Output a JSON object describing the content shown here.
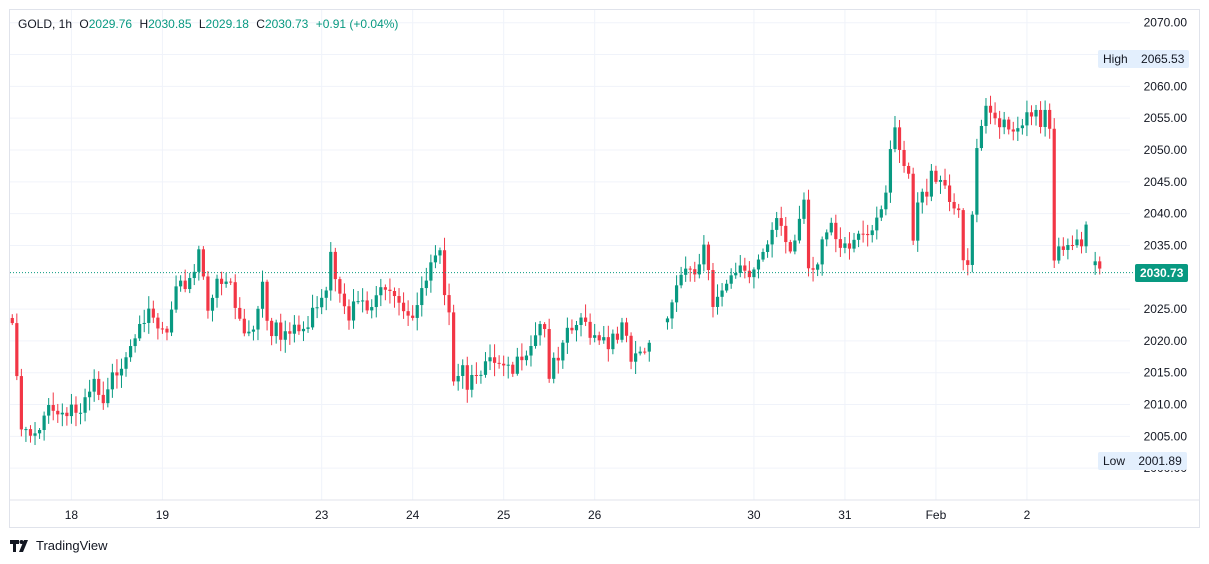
{
  "legend": {
    "symbol": "GOLD, 1h",
    "open_key": "O",
    "open": "2029.76",
    "high_key": "H",
    "high": "2030.85",
    "low_key": "L",
    "low": "2029.18",
    "close_key": "C",
    "close": "2030.73",
    "change": "+0.91 (+0.04%)"
  },
  "brand": "TradingView",
  "colors": {
    "up": "#089981",
    "down": "#f23645",
    "grid": "#f0f3fa",
    "axis_text": "#131722"
  },
  "chart_data": {
    "type": "candlestick",
    "title": "GOLD, 1h",
    "ylim": [
      1995,
      2072
    ],
    "yticks": [
      2000,
      2005,
      2010,
      2015,
      2020,
      2025,
      2030,
      2035,
      2040,
      2045,
      2050,
      2055,
      2060,
      2065,
      2070
    ],
    "ytick_labels": [
      "2000.00",
      "2005.00",
      "2010.00",
      "2015.00",
      "2020.00",
      "2025.00",
      "2030.00",
      "2035.00",
      "2040.00",
      "2045.00",
      "2050.00",
      "2055.00",
      "2060.00",
      "2065.00",
      "2070.00"
    ],
    "xticks": [
      {
        "label": "18",
        "bar": 13
      },
      {
        "label": "19",
        "bar": 33
      },
      {
        "label": "23",
        "bar": 68
      },
      {
        "label": "24",
        "bar": 88
      },
      {
        "label": "25",
        "bar": 108
      },
      {
        "label": "26",
        "bar": 128
      },
      {
        "label": "30",
        "bar": 163
      },
      {
        "label": "31",
        "bar": 183
      },
      {
        "label": "Feb",
        "bar": 203
      },
      {
        "label": "2",
        "bar": 223
      }
    ],
    "high_label": "High",
    "high_value": "2065.53",
    "low_label": "Low",
    "low_value": "2001.89",
    "last_value": "2030.73",
    "last_numeric": 2030.73,
    "total_bars": 240,
    "keypoints": [
      [
        0,
        2022.8
      ],
      [
        1,
        2013.0
      ],
      [
        2,
        2006.0
      ],
      [
        4,
        2004.5
      ],
      [
        6,
        2005.0
      ],
      [
        8,
        2011.0
      ],
      [
        10,
        2008.5
      ],
      [
        13,
        2010.0
      ],
      [
        15,
        2008.0
      ],
      [
        18,
        2013.0
      ],
      [
        20,
        2009.0
      ],
      [
        22,
        2014.0
      ],
      [
        24,
        2017.0
      ],
      [
        26,
        2020.0
      ],
      [
        28,
        2024.0
      ],
      [
        30,
        2023.5
      ],
      [
        32,
        2021.5
      ],
      [
        34,
        2021.0
      ],
      [
        36,
        2027.0
      ],
      [
        38,
        2029.0
      ],
      [
        40,
        2031.5
      ],
      [
        41,
        2034.5
      ],
      [
        42,
        2031.0
      ],
      [
        43,
        2026.0
      ],
      [
        45,
        2028.5
      ],
      [
        47,
        2028.5
      ],
      [
        48,
        2029.0
      ],
      [
        49,
        2025.0
      ],
      [
        51,
        2021.0
      ],
      [
        53,
        2022.5
      ],
      [
        55,
        2029.5
      ],
      [
        56,
        2024.0
      ],
      [
        57,
        2022.0
      ],
      [
        58,
        2024.0
      ],
      [
        59,
        2021.5
      ],
      [
        61,
        2021.0
      ],
      [
        63,
        2021.5
      ],
      [
        65,
        2022.0
      ],
      [
        67,
        2026.5
      ],
      [
        69,
        2029.0
      ],
      [
        70,
        2035.0
      ],
      [
        71,
        2030.5
      ],
      [
        73,
        2027.0
      ],
      [
        74,
        2024.5
      ],
      [
        76,
        2026.0
      ],
      [
        78,
        2024.5
      ],
      [
        80,
        2026.0
      ],
      [
        82,
        2029.5
      ],
      [
        84,
        2028.5
      ],
      [
        86,
        2025.5
      ],
      [
        88,
        2024.5
      ],
      [
        90,
        2027.0
      ],
      [
        92,
        2031.5
      ],
      [
        94,
        2033.0
      ],
      [
        95,
        2026.0
      ],
      [
        96,
        2023.0
      ],
      [
        97,
        2015.0
      ],
      [
        99,
        2017.0
      ],
      [
        100,
        2013.5
      ],
      [
        102,
        2016.0
      ],
      [
        104,
        2016.0
      ],
      [
        106,
        2016.0
      ],
      [
        108,
        2015.0
      ],
      [
        110,
        2014.5
      ],
      [
        112,
        2018.5
      ],
      [
        114,
        2020.0
      ],
      [
        116,
        2023.5
      ],
      [
        117,
        2022.0
      ],
      [
        118,
        2015.0
      ],
      [
        120,
        2016.5
      ],
      [
        122,
        2020.5
      ],
      [
        124,
        2022.5
      ],
      [
        126,
        2022.5
      ],
      [
        128,
        2021.0
      ],
      [
        130,
        2021.5
      ],
      [
        131,
        2019.0
      ],
      [
        132,
        2021.5
      ],
      [
        134,
        2022.0
      ],
      [
        135,
        2019.5
      ],
      [
        136,
        2016.5
      ],
      [
        138,
        2017.0
      ],
      [
        140,
        2019.0
      ],
      [
        141,
        null
      ],
      [
        142,
        null
      ],
      [
        143,
        null
      ],
      [
        144,
        2025.0
      ],
      [
        145,
        2026.5
      ],
      [
        146,
        2029.0
      ],
      [
        148,
        2032.0
      ],
      [
        150,
        2029.0
      ],
      [
        152,
        2035.0
      ],
      [
        153,
        2030.0
      ],
      [
        154,
        2024.5
      ],
      [
        155,
        2025.5
      ],
      [
        156,
        2028.0
      ],
      [
        158,
        2031.5
      ],
      [
        160,
        2032.0
      ],
      [
        162,
        2031.5
      ],
      [
        164,
        2032.5
      ],
      [
        166,
        2034.0
      ],
      [
        168,
        2038.5
      ],
      [
        170,
        2035.5
      ],
      [
        171,
        2034.5
      ],
      [
        172,
        2036.0
      ],
      [
        174,
        2043.0
      ],
      [
        175,
        2032.0
      ],
      [
        177,
        2033.0
      ],
      [
        178,
        2036.0
      ],
      [
        180,
        2037.0
      ],
      [
        182,
        2033.5
      ],
      [
        184,
        2034.5
      ],
      [
        186,
        2037.0
      ],
      [
        188,
        2037.5
      ],
      [
        190,
        2040.0
      ],
      [
        192,
        2044.0
      ],
      [
        193,
        2050.0
      ],
      [
        194,
        2052.0
      ],
      [
        195,
        2049.0
      ],
      [
        197,
        2045.0
      ],
      [
        198,
        2035.5
      ],
      [
        199,
        2041.0
      ],
      [
        201,
        2044.0
      ],
      [
        202,
        2047.5
      ],
      [
        203,
        2046.0
      ],
      [
        205,
        2045.0
      ],
      [
        207,
        2041.0
      ],
      [
        208,
        2039.0
      ],
      [
        209,
        2032.0
      ],
      [
        210,
        2031.5
      ],
      [
        211,
        2039.5
      ],
      [
        212,
        2049.0
      ],
      [
        214,
        2056.0
      ],
      [
        216,
        2055.0
      ],
      [
        218,
        2055.0
      ],
      [
        220,
        2053.5
      ],
      [
        222,
        2055.0
      ],
      [
        224,
        2054.5
      ],
      [
        225,
        2055.5
      ],
      [
        226,
        2053.5
      ],
      [
        227,
        2055.5
      ],
      [
        228,
        2052.0
      ],
      [
        229,
        2032.0
      ],
      [
        230,
        2033.5
      ],
      [
        231,
        2035.0
      ],
      [
        233,
        2036.0
      ],
      [
        234,
        2037.0
      ],
      [
        235,
        2035.5
      ],
      [
        236,
        2039.5
      ],
      [
        237,
        null
      ],
      [
        238,
        2031.5
      ],
      [
        239,
        2030.73
      ]
    ]
  }
}
